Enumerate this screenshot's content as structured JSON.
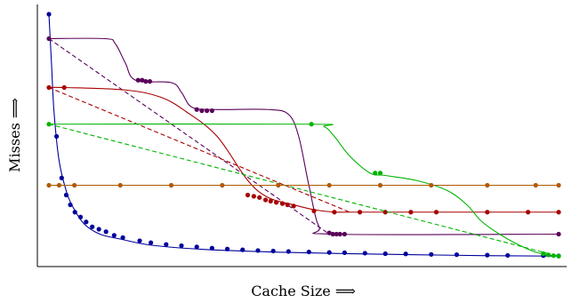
{
  "chart_data": {
    "type": "line",
    "xlabel": "Cache Size ⟹",
    "ylabel": "Misses ⟹",
    "xlim": [
      0,
      100
    ],
    "ylim": [
      0,
      100
    ],
    "grid": false,
    "series": [
      {
        "color": "#00009c",
        "style": "solid-with-points",
        "curve": [
          [
            0,
            100
          ],
          [
            0.5,
            80
          ],
          [
            1,
            60
          ],
          [
            2,
            40
          ],
          [
            3.5,
            27
          ],
          [
            5,
            20
          ],
          [
            7,
            14
          ],
          [
            10,
            10
          ],
          [
            14,
            8
          ],
          [
            20,
            5.5
          ],
          [
            30,
            3.8
          ],
          [
            45,
            2.6
          ],
          [
            65,
            1.8
          ],
          [
            85,
            1.2
          ],
          [
            100,
            1
          ]
        ],
        "points": [
          [
            0,
            100
          ],
          [
            1.5,
            50
          ],
          [
            2.5,
            33
          ],
          [
            3.4,
            26
          ],
          [
            4.2,
            22
          ],
          [
            5.1,
            19
          ],
          [
            6.2,
            17
          ],
          [
            7.3,
            15
          ],
          [
            8.5,
            13
          ],
          [
            9.8,
            12
          ],
          [
            11.2,
            11
          ],
          [
            12.8,
            9.5
          ],
          [
            14.5,
            8.6
          ],
          [
            17.8,
            7.3
          ],
          [
            20,
            6.5
          ],
          [
            23,
            5.8
          ],
          [
            26,
            5.3
          ],
          [
            29,
            4.8
          ],
          [
            32,
            4.3
          ],
          [
            35,
            3.9
          ],
          [
            38,
            3.6
          ],
          [
            41,
            3.3
          ],
          [
            44,
            3.1
          ],
          [
            47,
            2.9
          ],
          [
            51,
            2.7
          ],
          [
            55,
            2.5
          ],
          [
            58,
            2.4
          ],
          [
            62,
            2.2
          ],
          [
            66,
            2.0
          ],
          [
            70,
            1.9
          ],
          [
            75,
            1.7
          ],
          [
            80,
            1.6
          ],
          [
            86,
            1.4
          ],
          [
            90,
            1.3
          ],
          [
            97,
            1.2
          ],
          [
            100,
            1.1
          ]
        ]
      },
      {
        "color": "#5a005a",
        "style": "solid-with-points",
        "curve": [
          [
            0,
            90
          ],
          [
            11,
            90
          ],
          [
            13,
            88
          ],
          [
            15,
            80
          ],
          [
            17,
            73
          ],
          [
            24,
            72
          ],
          [
            26,
            68
          ],
          [
            28,
            62
          ],
          [
            32,
            61
          ],
          [
            43,
            61
          ],
          [
            47,
            59
          ],
          [
            49,
            50
          ],
          [
            51,
            30
          ],
          [
            53,
            13
          ],
          [
            56,
            10
          ],
          [
            100,
            10
          ]
        ],
        "points": [
          [
            0,
            90
          ],
          [
            17.5,
            73
          ],
          [
            18.3,
            73
          ],
          [
            19.0,
            72.5
          ],
          [
            19.8,
            72.5
          ],
          [
            29,
            61
          ],
          [
            30,
            60.5
          ],
          [
            31,
            60.5
          ],
          [
            32,
            60.5
          ],
          [
            55,
            10.5
          ],
          [
            55.7,
            10
          ],
          [
            56.4,
            10
          ],
          [
            57.1,
            10
          ],
          [
            58,
            10
          ],
          [
            100,
            10
          ]
        ]
      },
      {
        "color": "#5a005a",
        "style": "dashed",
        "curve": [
          [
            0,
            90
          ],
          [
            55,
            10
          ]
        ]
      },
      {
        "color": "#a80000",
        "style": "solid-with-points",
        "curve": [
          [
            0,
            70
          ],
          [
            3,
            70
          ],
          [
            15,
            69
          ],
          [
            22,
            66
          ],
          [
            27,
            60
          ],
          [
            33,
            50
          ],
          [
            39,
            32
          ],
          [
            43,
            25
          ],
          [
            48,
            22
          ],
          [
            52,
            20
          ],
          [
            56,
            19
          ],
          [
            60,
            19
          ],
          [
            100,
            19
          ]
        ],
        "points": [
          [
            0,
            70
          ],
          [
            3,
            70
          ],
          [
            39,
            26
          ],
          [
            40.2,
            25.5
          ],
          [
            41.3,
            25
          ],
          [
            42.5,
            24
          ],
          [
            43.5,
            23.5
          ],
          [
            44.6,
            23
          ],
          [
            45.8,
            22.5
          ],
          [
            46.8,
            22
          ],
          [
            48,
            21.5
          ],
          [
            52,
            19.5
          ],
          [
            56,
            19
          ],
          [
            61,
            19
          ],
          [
            66,
            19
          ],
          [
            71,
            19
          ],
          [
            76,
            19
          ],
          [
            86,
            19
          ],
          [
            94,
            19
          ],
          [
            100,
            19
          ]
        ]
      },
      {
        "color": "#a80000",
        "style": "dashed",
        "curve": [
          [
            0,
            70
          ],
          [
            59,
            19
          ]
        ]
      },
      {
        "color": "#00b400",
        "style": "solid-with-points",
        "curve": [
          [
            0,
            55
          ],
          [
            51,
            55
          ],
          [
            54,
            54
          ],
          [
            56,
            50
          ],
          [
            59,
            42
          ],
          [
            63,
            35
          ],
          [
            66,
            34
          ],
          [
            72,
            32
          ],
          [
            78,
            28
          ],
          [
            82,
            22
          ],
          [
            85,
            15
          ],
          [
            90,
            8
          ],
          [
            95,
            3
          ],
          [
            98,
            1.5
          ],
          [
            100,
            1
          ]
        ],
        "points": [
          [
            0,
            55
          ],
          [
            51.5,
            55
          ],
          [
            64,
            35
          ],
          [
            65,
            35
          ],
          [
            97,
            2
          ],
          [
            98,
            1.5
          ],
          [
            99,
            1.2
          ],
          [
            100,
            1
          ]
        ]
      },
      {
        "color": "#00b400",
        "style": "dashed",
        "curve": [
          [
            0,
            55
          ],
          [
            100,
            1
          ]
        ]
      },
      {
        "color": "#b05a00",
        "style": "solid-with-points",
        "curve": [
          [
            0,
            30
          ],
          [
            100,
            30
          ]
        ],
        "points": [
          [
            0,
            30
          ],
          [
            2,
            30
          ],
          [
            5,
            30
          ],
          [
            14,
            30
          ],
          [
            24,
            30
          ],
          [
            34,
            30
          ],
          [
            45,
            30
          ],
          [
            55,
            30
          ],
          [
            65,
            30
          ],
          [
            75,
            30
          ],
          [
            86,
            30
          ],
          [
            95.5,
            30
          ],
          [
            100,
            30
          ]
        ]
      }
    ]
  }
}
